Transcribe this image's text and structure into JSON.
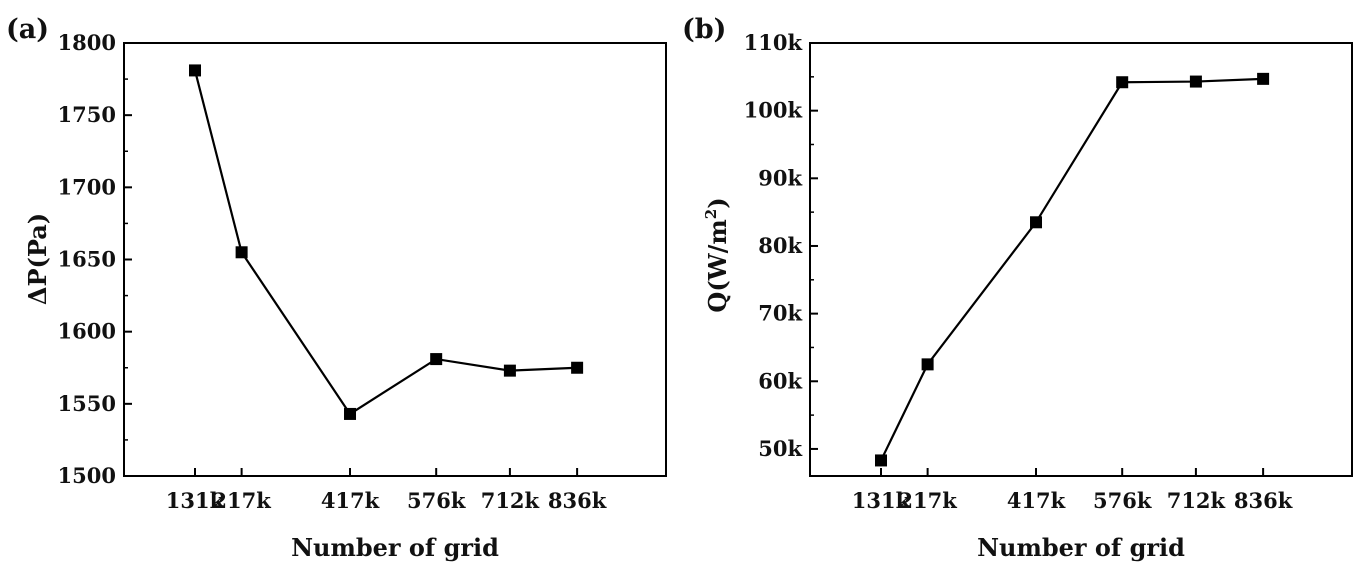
{
  "chart_data": [
    {
      "panel": "(a)",
      "type": "line",
      "marker": "square",
      "x": [
        "131k",
        "217k",
        "417k",
        "576k",
        "712k",
        "836k"
      ],
      "x_numeric": [
        131,
        217,
        417,
        576,
        712,
        836
      ],
      "y": [
        1781,
        1655,
        1543,
        1581,
        1573,
        1575
      ],
      "xlabel": "Number of grid",
      "ylabel": "ΔP(Pa)",
      "ylim": [
        1500,
        1800
      ],
      "yticks": [
        1500,
        1550,
        1600,
        1650,
        1700,
        1750,
        1800
      ],
      "ytick_labels": [
        "1500",
        "1550",
        "1600",
        "1650",
        "1700",
        "1750",
        "1800"
      ],
      "grid": false,
      "color": "#000000"
    },
    {
      "panel": "(b)",
      "type": "line",
      "marker": "square",
      "x": [
        "131k",
        "217k",
        "417k",
        "576k",
        "712k",
        "836k"
      ],
      "x_numeric": [
        131,
        217,
        417,
        576,
        712,
        836
      ],
      "y": [
        48300,
        62500,
        83500,
        104200,
        104300,
        104700
      ],
      "xlabel": "Number of grid",
      "ylabel_main": "Q(W/m",
      "ylabel_sup": "2",
      "ylabel_end": ")",
      "ylim": [
        46000,
        110000
      ],
      "yticks": [
        50000,
        60000,
        70000,
        80000,
        90000,
        100000,
        110000
      ],
      "ytick_labels": [
        "50k",
        "60k",
        "70k",
        "80k",
        "90k",
        "100k",
        "110k"
      ],
      "grid": false,
      "color": "#000000"
    }
  ]
}
